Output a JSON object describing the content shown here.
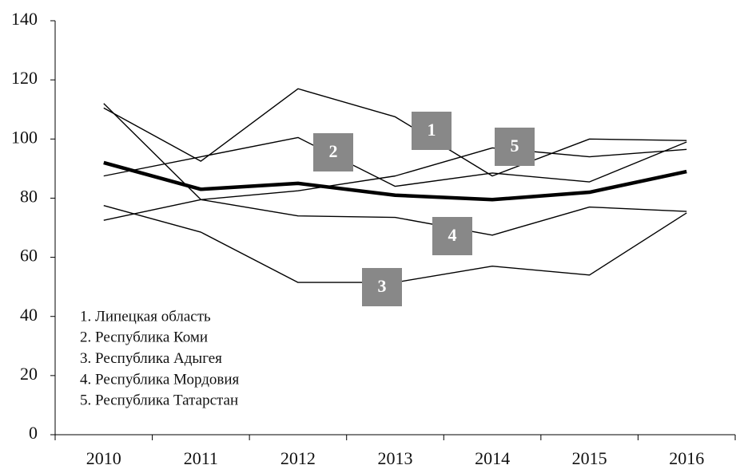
{
  "chart_data": {
    "type": "line",
    "categories": [
      "2010",
      "2011",
      "2012",
      "2013",
      "2014",
      "2015",
      "2016"
    ],
    "ylim": [
      0,
      140
    ],
    "yticks": [
      0,
      20,
      40,
      60,
      80,
      100,
      120,
      140
    ],
    "series": [
      {
        "name": "1. Липецкая область",
        "marker": "1",
        "color": "#000000",
        "values": [
          110.5,
          92.5,
          117,
          107.5,
          87.5,
          100,
          99.5
        ]
      },
      {
        "name": "2. Республика Коми",
        "marker": "2",
        "color": "#000000",
        "values": [
          87.5,
          94,
          100.5,
          84,
          88.5,
          85.5,
          99
        ]
      },
      {
        "name": "3. Республика Адыгея",
        "marker": "3",
        "color": "#000000",
        "values": [
          77.5,
          68.5,
          51.5,
          51.5,
          57,
          54,
          75
        ]
      },
      {
        "name": "4. Республика Мордовия",
        "marker": "4",
        "color": "#000000",
        "values": [
          112,
          79.5,
          74,
          73.5,
          67.5,
          77,
          75.5
        ]
      },
      {
        "name": "5. Республика Татарстан",
        "marker": "5",
        "color": "#000000",
        "values": [
          72.5,
          79.5,
          82.5,
          87.5,
          97,
          94,
          96.5
        ]
      },
      {
        "color": "#000000",
        "values": [
          92,
          83,
          85,
          81,
          79.5,
          82,
          89
        ]
      }
    ]
  }
}
